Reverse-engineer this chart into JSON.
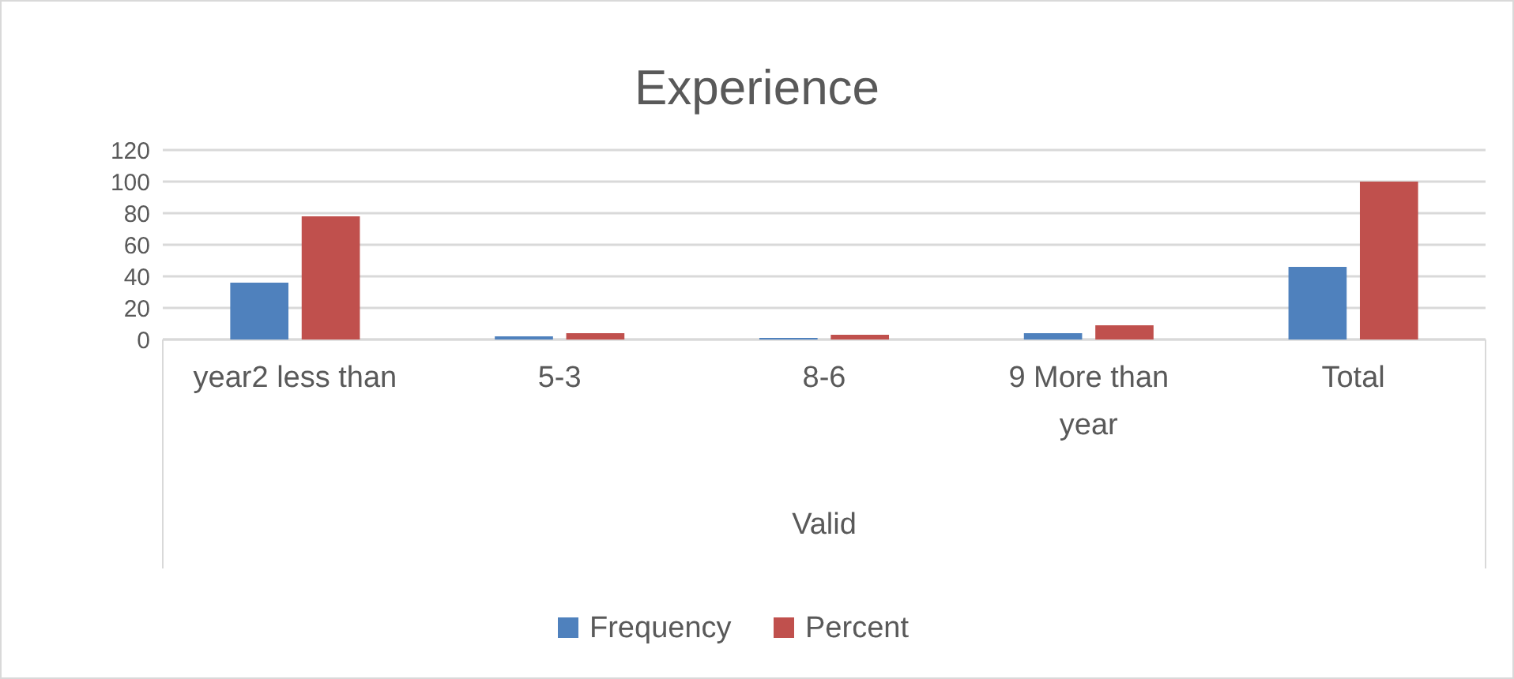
{
  "chart_data": {
    "type": "bar",
    "title": "Experience",
    "xlabel": "Valid",
    "categories": [
      "year2 less than",
      "5-3",
      "8-6",
      "9 More than year",
      "Total"
    ],
    "series": [
      {
        "name": "Frequency",
        "color": "#4f81bd",
        "values": [
          36,
          2,
          1,
          4,
          46
        ]
      },
      {
        "name": "Percent",
        "color": "#c0504d",
        "values": [
          78,
          4,
          3,
          9,
          100
        ]
      }
    ],
    "ylim": [
      0,
      120
    ],
    "yticks": [
      0,
      20,
      40,
      60,
      80,
      100,
      120
    ],
    "grid": "y",
    "legend": "bottom"
  }
}
